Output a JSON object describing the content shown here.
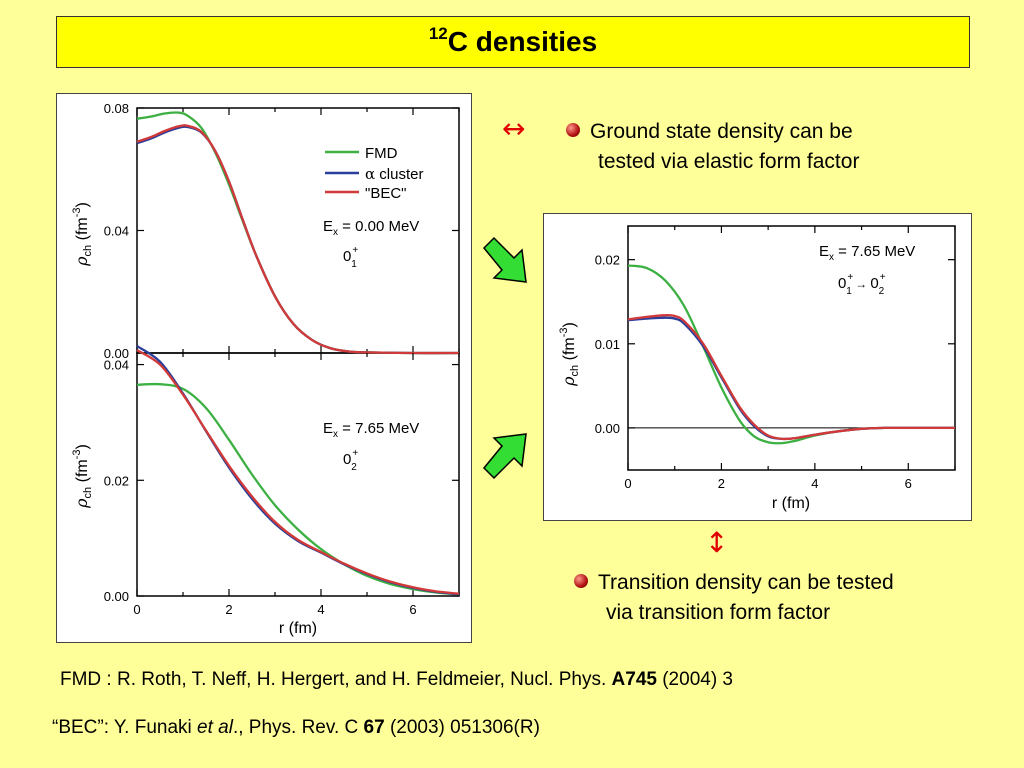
{
  "slide": {
    "title_sup": "12",
    "title_main": "C densities",
    "bullet1_line1": "Ground state density can be",
    "bullet1_line2": "tested via elastic form factor",
    "bullet2_line1": "Transition density can be tested",
    "bullet2_line2": "via transition form factor",
    "arrow_horizontal": "↔",
    "arrow_vertical": "↕",
    "ref1_text": "FMD : R. Roth, T. Neff, H. Hergert, and H. Feldmeier, Nucl. Phys. ",
    "ref1_bold": "A745",
    "ref1_tail": " (2004) 3",
    "ref2_text": "“BEC”: Y. Funaki ",
    "ref2_italic": "et al",
    "ref2_mid": "., Phys. Rev. C ",
    "ref2_bold": "67",
    "ref2_tail": " (2003) 051306(R)"
  },
  "colors": {
    "FMD": "#3cb043",
    "alpha": "#2a3f9a",
    "BEC": "#d23a3a",
    "arrow_green": "#33dd33"
  },
  "chart_data": [
    {
      "id": "top-left",
      "type": "line",
      "xlabel": "",
      "ylabel": "ρ_ch (fm^-3)",
      "xlim": [
        0,
        7
      ],
      "ylim": [
        0,
        0.08
      ],
      "yticks": [
        "0.00",
        "0.04",
        "0.08"
      ],
      "yticks_values": [
        0,
        0.04,
        0.08
      ],
      "legend": [
        "FMD",
        "α cluster",
        "\"BEC\""
      ],
      "annotation1": "E_x = 0.00 MeV",
      "annotation2": "0_1^+",
      "series": [
        {
          "name": "FMD",
          "color": "#3cb043",
          "x": [
            0,
            0.3,
            0.6,
            0.9,
            1.1,
            1.4,
            1.7,
            2.0,
            2.3,
            2.6,
            3.0,
            3.4,
            3.8,
            4.2,
            4.6,
            5.0,
            6.0,
            7.0
          ],
          "y": [
            0.0765,
            0.0772,
            0.0782,
            0.0785,
            0.0775,
            0.0735,
            0.0655,
            0.055,
            0.043,
            0.0315,
            0.0185,
            0.0095,
            0.0043,
            0.0016,
            0.0005,
            0.0002,
            0.0,
            0.0
          ]
        },
        {
          "name": "α cluster",
          "color": "#2a3f9a",
          "x": [
            0,
            0.3,
            0.6,
            0.9,
            1.1,
            1.4,
            1.7,
            2.0,
            2.3,
            2.6,
            3.0,
            3.4,
            3.8,
            4.2,
            4.6,
            5.0,
            6.0,
            7.0
          ],
          "y": [
            0.0685,
            0.07,
            0.072,
            0.0735,
            0.0738,
            0.072,
            0.066,
            0.056,
            0.0435,
            0.0315,
            0.0185,
            0.0095,
            0.0043,
            0.0016,
            0.0005,
            0.0002,
            0.0,
            0.0
          ]
        },
        {
          "name": "\"BEC\"",
          "color": "#d23a3a",
          "x": [
            0,
            0.3,
            0.6,
            0.9,
            1.1,
            1.4,
            1.7,
            2.0,
            2.3,
            2.6,
            3.0,
            3.4,
            3.8,
            4.2,
            4.6,
            5.0,
            6.0,
            7.0
          ],
          "y": [
            0.069,
            0.0705,
            0.0725,
            0.074,
            0.0742,
            0.0722,
            0.066,
            0.056,
            0.0435,
            0.0315,
            0.0185,
            0.0095,
            0.0043,
            0.0016,
            0.0005,
            0.0002,
            0.0,
            0.0
          ]
        }
      ]
    },
    {
      "id": "bottom-left",
      "type": "line",
      "xlabel": "r (fm)",
      "ylabel": "ρ_ch (fm^-3)",
      "xlim": [
        0,
        7
      ],
      "ylim": [
        0,
        0.042
      ],
      "xticks": [
        "0",
        "2",
        "4",
        "6"
      ],
      "xticks_values": [
        0,
        2,
        4,
        6
      ],
      "yticks": [
        "0.00",
        "0.02",
        "0.04"
      ],
      "yticks_values": [
        0,
        0.02,
        0.04
      ],
      "annotation1": "E_x = 7.65 MeV",
      "annotation2": "0_2^+",
      "series": [
        {
          "name": "FMD",
          "color": "#3cb043",
          "x": [
            0,
            0.5,
            1.0,
            1.5,
            2.0,
            2.5,
            3.0,
            3.5,
            4.0,
            4.5,
            5.0,
            5.5,
            6.0,
            6.5,
            7.0
          ],
          "y": [
            0.0365,
            0.0366,
            0.0358,
            0.0325,
            0.027,
            0.021,
            0.0157,
            0.0115,
            0.0081,
            0.0055,
            0.0035,
            0.0021,
            0.0012,
            0.0006,
            0.0003
          ]
        },
        {
          "name": "α cluster",
          "color": "#2a3f9a",
          "x": [
            0,
            0.5,
            1.0,
            1.5,
            2.0,
            2.5,
            3.0,
            3.5,
            4.0,
            4.5,
            5.0,
            5.5,
            6.0,
            6.5,
            7.0
          ],
          "y": [
            0.0432,
            0.0405,
            0.035,
            0.0285,
            0.0222,
            0.0168,
            0.0125,
            0.0095,
            0.0075,
            0.0055,
            0.0038,
            0.0024,
            0.0014,
            0.0007,
            0.0003
          ]
        },
        {
          "name": "\"BEC\"",
          "color": "#d23a3a",
          "x": [
            0,
            0.5,
            1.0,
            1.5,
            2.0,
            2.5,
            3.0,
            3.5,
            4.0,
            4.5,
            5.0,
            5.5,
            6.0,
            6.5,
            7.0
          ],
          "y": [
            0.0425,
            0.04,
            0.0348,
            0.0286,
            0.0225,
            0.0172,
            0.0128,
            0.0097,
            0.0076,
            0.0056,
            0.0039,
            0.0025,
            0.0015,
            0.0008,
            0.0004
          ]
        }
      ]
    },
    {
      "id": "right",
      "type": "line",
      "xlabel": "r (fm)",
      "ylabel": "ρ_ch (fm^-3)",
      "xlim": [
        0,
        7
      ],
      "ylim": [
        -0.005,
        0.024
      ],
      "xticks": [
        "0",
        "2",
        "4",
        "6"
      ],
      "xticks_values": [
        0,
        2,
        4,
        6
      ],
      "yticks": [
        "0.00",
        "0.01",
        "0.02"
      ],
      "yticks_values": [
        0,
        0.01,
        0.02
      ],
      "annotation1": "E_x = 7.65 MeV",
      "annotation2": "0_1^+ → 0_2^+",
      "series": [
        {
          "name": "FMD",
          "color": "#3cb043",
          "x": [
            0,
            0.4,
            0.8,
            1.2,
            1.6,
            2.0,
            2.4,
            2.7,
            3.0,
            3.3,
            3.6,
            4.0,
            4.5,
            5.0,
            5.5,
            6.0,
            7.0
          ],
          "y": [
            0.0193,
            0.019,
            0.0175,
            0.0145,
            0.0098,
            0.0048,
            0.0008,
            -0.001,
            -0.0017,
            -0.0018,
            -0.0015,
            -0.0009,
            -0.0004,
            -0.0001,
            0.0,
            0.0,
            0.0
          ]
        },
        {
          "name": "α cluster",
          "color": "#2a3f9a",
          "x": [
            0,
            0.4,
            0.8,
            1.0,
            1.2,
            1.6,
            2.0,
            2.4,
            2.7,
            3.0,
            3.3,
            3.6,
            4.0,
            4.5,
            5.0,
            5.5,
            6.0,
            7.0
          ],
          "y": [
            0.0128,
            0.013,
            0.0131,
            0.013,
            0.0124,
            0.0098,
            0.006,
            0.0022,
            0.0002,
            -0.001,
            -0.0013,
            -0.0012,
            -0.0008,
            -0.0004,
            -0.0001,
            0.0,
            0.0,
            0.0
          ]
        },
        {
          "name": "\"BEC\"",
          "color": "#d23a3a",
          "x": [
            0,
            0.4,
            0.8,
            1.0,
            1.2,
            1.6,
            2.0,
            2.4,
            2.7,
            3.0,
            3.3,
            3.6,
            4.0,
            4.5,
            5.0,
            5.5,
            6.0,
            7.0
          ],
          "y": [
            0.0129,
            0.0132,
            0.0134,
            0.0133,
            0.0127,
            0.0101,
            0.0062,
            0.0024,
            0.0004,
            -0.0009,
            -0.0013,
            -0.0012,
            -0.0008,
            -0.0004,
            -0.0001,
            0.0,
            0.0,
            0.0
          ]
        }
      ]
    }
  ]
}
